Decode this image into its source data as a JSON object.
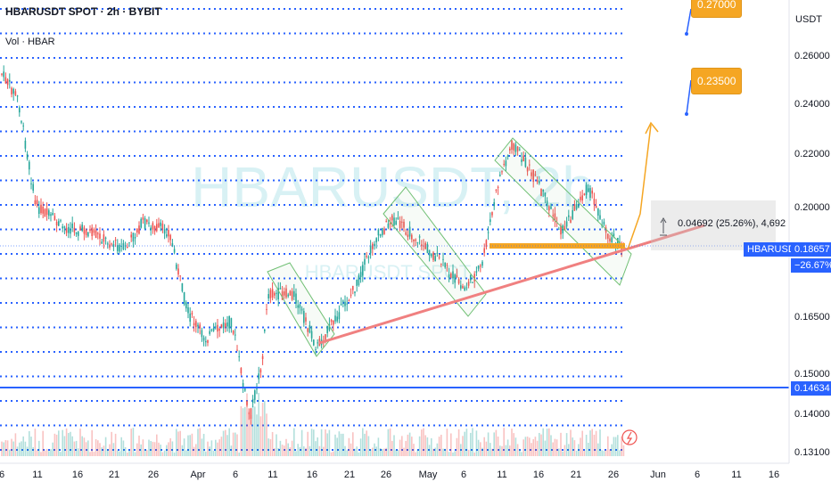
{
  "header": {
    "symbol": "HBARUSDT SPOT · 2h · BYBIT",
    "volume_label": "Vol · HBAR"
  },
  "watermark": {
    "line1": "HBARUSDT, 2h",
    "line2": "HBARUSDT SPOT"
  },
  "price_axis": {
    "unit": "USDT",
    "ticks": [
      "0.26000",
      "0.24000",
      "0.22000",
      "0.20000",
      "0.16500",
      "0.15000",
      "0.14000",
      "0.13100"
    ]
  },
  "time_axis": {
    "ticks": [
      "6",
      "11",
      "16",
      "21",
      "26",
      "Apr",
      "6",
      "11",
      "16",
      "21",
      "26",
      "May",
      "6",
      "11",
      "16",
      "21",
      "26",
      "Jun",
      "6",
      "11",
      "16"
    ]
  },
  "labels": {
    "current_symbol": "HBARUSDT",
    "current_price": "0.18657",
    "current_change": "−26.67%",
    "support_price": "0.14634",
    "measure": "0.04692 (25.26%), 4,692",
    "target1": "0.23500",
    "target2": "0.27000"
  },
  "colors": {
    "grid_blue": "#2962ff",
    "candle_up": "#26a69a",
    "candle_down": "#ef5350",
    "trend_red": "#f08080",
    "channel_green": "#6fbf73",
    "support_orange": "#f5a623",
    "support_line_blue": "#2962ff"
  },
  "icons": {
    "flash": "lightning-icon"
  }
}
